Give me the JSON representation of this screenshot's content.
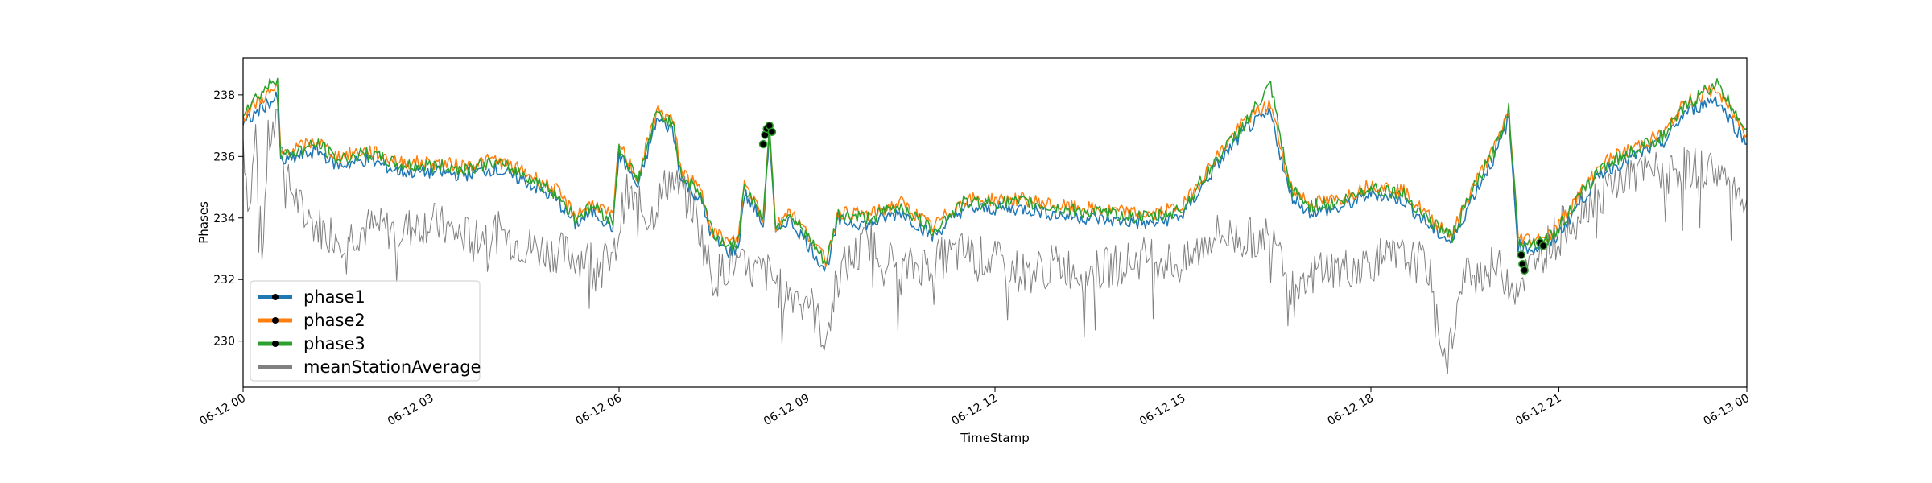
{
  "chart_data": {
    "type": "line",
    "title": "",
    "xlabel": "TimeStamp",
    "ylabel": "Phases",
    "xlim_hours": [
      0,
      24
    ],
    "ylim": [
      228.5,
      239.2
    ],
    "x_ticks": [
      {
        "h": 0,
        "label": "06-12 00"
      },
      {
        "h": 3,
        "label": "06-12 03"
      },
      {
        "h": 6,
        "label": "06-12 06"
      },
      {
        "h": 9,
        "label": "06-12 09"
      },
      {
        "h": 12,
        "label": "06-12 12"
      },
      {
        "h": 15,
        "label": "06-12 15"
      },
      {
        "h": 18,
        "label": "06-12 18"
      },
      {
        "h": 21,
        "label": "06-12 21"
      },
      {
        "h": 24,
        "label": "06-13 00"
      }
    ],
    "y_ticks": [
      {
        "v": 230,
        "label": "230"
      },
      {
        "v": 232,
        "label": "232"
      },
      {
        "v": 234,
        "label": "234"
      },
      {
        "v": 236,
        "label": "236"
      },
      {
        "v": 238,
        "label": "238"
      }
    ],
    "legend_position": "lower-left",
    "grid": false,
    "series": [
      {
        "name": "phase1",
        "color": "#1f77b4",
        "x": [
          0,
          0.3,
          0.55,
          0.6,
          1.2,
          1.5,
          2.0,
          2.5,
          3.0,
          3.5,
          4.0,
          4.5,
          5.0,
          5.3,
          5.6,
          5.9,
          6.0,
          6.3,
          6.6,
          6.85,
          7.0,
          7.3,
          7.5,
          7.75,
          7.9,
          8.0,
          8.2,
          8.3,
          8.4,
          8.5,
          8.7,
          9.0,
          9.3,
          9.5,
          10,
          10.5,
          11,
          11.5,
          12,
          12.5,
          13,
          13.5,
          14,
          14.5,
          15,
          15.5,
          16,
          16.4,
          16.7,
          17.0,
          17.5,
          18,
          18.5,
          19.0,
          19.3,
          19.6,
          20.0,
          20.2,
          20.35,
          20.6,
          20.9,
          21.3,
          21.7,
          22.2,
          22.7,
          23.0,
          23.5,
          24
        ],
        "y": [
          237.0,
          237.6,
          237.9,
          235.8,
          236.2,
          235.7,
          235.9,
          235.5,
          235.5,
          235.4,
          235.6,
          235.2,
          234.6,
          233.8,
          234.2,
          233.7,
          236.1,
          235.0,
          237.2,
          236.9,
          235.2,
          234.6,
          233.3,
          232.9,
          233.0,
          234.8,
          234.2,
          233.7,
          236.8,
          233.4,
          234.0,
          233.2,
          232.3,
          233.9,
          233.8,
          234.2,
          233.4,
          234.3,
          234.3,
          234.3,
          234.1,
          234.0,
          233.9,
          233.8,
          234.1,
          235.6,
          236.9,
          237.4,
          234.8,
          234.2,
          234.3,
          234.8,
          234.6,
          233.6,
          233.2,
          234.6,
          236.1,
          237.2,
          233.1,
          233.0,
          233.2,
          234.4,
          235.5,
          236.0,
          236.5,
          237.4,
          237.9,
          236.4
        ]
      },
      {
        "name": "phase2",
        "color": "#ff7f0e",
        "x": [
          0,
          0.3,
          0.55,
          0.6,
          1.2,
          1.5,
          2.0,
          2.5,
          3.0,
          3.5,
          4.0,
          4.5,
          5.0,
          5.3,
          5.6,
          5.9,
          6.0,
          6.3,
          6.6,
          6.85,
          7.0,
          7.3,
          7.5,
          7.75,
          7.9,
          8.0,
          8.2,
          8.3,
          8.4,
          8.5,
          8.7,
          9.0,
          9.3,
          9.5,
          10,
          10.5,
          11,
          11.5,
          12,
          12.5,
          13,
          13.5,
          14,
          14.5,
          15,
          15.5,
          16,
          16.4,
          16.7,
          17.0,
          17.5,
          18,
          18.5,
          19.0,
          19.3,
          19.6,
          20.0,
          20.2,
          20.35,
          20.6,
          20.9,
          21.3,
          21.7,
          22.2,
          22.7,
          23.0,
          23.5,
          24
        ],
        "y": [
          237.3,
          237.9,
          238.2,
          236.1,
          236.5,
          236.0,
          236.2,
          235.8,
          235.8,
          235.7,
          235.9,
          235.5,
          234.9,
          234.1,
          234.5,
          234.0,
          236.4,
          235.3,
          237.5,
          237.2,
          235.5,
          234.9,
          233.6,
          233.2,
          233.3,
          235.1,
          234.5,
          234.0,
          237.0,
          233.7,
          234.3,
          233.5,
          232.6,
          234.2,
          234.1,
          234.5,
          233.7,
          234.6,
          234.6,
          234.6,
          234.4,
          234.3,
          234.2,
          234.1,
          234.4,
          235.9,
          237.2,
          237.7,
          235.1,
          234.5,
          234.6,
          235.1,
          234.9,
          233.9,
          233.5,
          234.9,
          236.4,
          237.5,
          233.4,
          233.3,
          233.5,
          234.7,
          235.8,
          236.3,
          236.8,
          237.7,
          238.2,
          236.7
        ]
      },
      {
        "name": "phase3",
        "color": "#2ca02c",
        "x": [
          0,
          0.3,
          0.55,
          0.6,
          1.2,
          1.5,
          2.0,
          2.5,
          3.0,
          3.5,
          4.0,
          4.5,
          5.0,
          5.3,
          5.6,
          5.9,
          6.0,
          6.3,
          6.6,
          6.85,
          7.0,
          7.3,
          7.5,
          7.75,
          7.9,
          8.0,
          8.2,
          8.3,
          8.4,
          8.5,
          8.7,
          9.0,
          9.3,
          9.5,
          10,
          10.5,
          11,
          11.5,
          12,
          12.5,
          13,
          13.5,
          14,
          14.5,
          15,
          15.5,
          16,
          16.4,
          16.7,
          17.0,
          17.5,
          18,
          18.5,
          19.0,
          19.3,
          19.6,
          20.0,
          20.2,
          20.35,
          20.6,
          20.9,
          21.3,
          21.7,
          22.2,
          22.7,
          23.0,
          23.5,
          24
        ],
        "y": [
          237.5,
          238.1,
          238.6,
          236.0,
          236.4,
          235.9,
          236.1,
          235.7,
          235.7,
          235.6,
          235.8,
          235.4,
          234.8,
          234.0,
          234.4,
          233.9,
          236.3,
          235.2,
          237.4,
          237.1,
          235.4,
          234.8,
          233.5,
          233.1,
          233.2,
          235.0,
          234.4,
          233.9,
          237.1,
          233.6,
          234.2,
          233.4,
          232.5,
          234.1,
          234.0,
          234.4,
          233.6,
          234.5,
          234.5,
          234.5,
          234.3,
          234.2,
          234.1,
          234.0,
          234.3,
          235.8,
          237.1,
          238.3,
          235.0,
          234.4,
          234.5,
          235.0,
          234.8,
          233.8,
          233.4,
          234.8,
          236.3,
          237.6,
          233.3,
          233.2,
          233.4,
          234.6,
          235.7,
          236.2,
          236.7,
          237.6,
          238.4,
          236.9
        ]
      },
      {
        "name": "meanStationAverage",
        "color": "#808080",
        "x": [
          0,
          0.1,
          0.2,
          0.3,
          0.4,
          0.55,
          0.7,
          1.0,
          1.3,
          1.6,
          2.0,
          2.5,
          3.0,
          3.5,
          4.0,
          4.5,
          5.0,
          5.5,
          5.9,
          6.1,
          6.5,
          6.8,
          7.2,
          7.5,
          7.8,
          8.0,
          8.4,
          8.6,
          9.0,
          9.3,
          9.5,
          10,
          10.5,
          11,
          11.5,
          12,
          12.5,
          13,
          13.5,
          14,
          14.5,
          15,
          15.5,
          16,
          16.5,
          16.8,
          17.2,
          17.5,
          18,
          18.5,
          18.9,
          19.2,
          19.5,
          20,
          20.3,
          20.6,
          21,
          21.5,
          22,
          22.5,
          23,
          23.5,
          24
        ],
        "y": [
          236.6,
          234.2,
          236.8,
          232.7,
          236.5,
          237.0,
          235.2,
          234.0,
          233.6,
          233.4,
          233.7,
          233.6,
          233.9,
          233.4,
          233.6,
          233.1,
          232.9,
          232.7,
          232.5,
          234.8,
          234.0,
          235.3,
          234.3,
          232.0,
          232.6,
          232.3,
          232.2,
          231.6,
          231.5,
          230.0,
          232.2,
          233.3,
          232.3,
          232.6,
          232.9,
          232.6,
          232.2,
          232.5,
          232.2,
          232.5,
          232.8,
          232.4,
          233.5,
          233.3,
          233.6,
          231.2,
          232.5,
          232.3,
          232.6,
          232.7,
          232.5,
          229.3,
          232.1,
          232.4,
          231.8,
          232.5,
          233.6,
          234.6,
          235.3,
          235.5,
          235.6,
          235.6,
          234.6
        ]
      }
    ],
    "marker_points": [
      {
        "series": "phase3",
        "x": 8.3,
        "y": 236.4
      },
      {
        "series": "phase3",
        "x": 8.33,
        "y": 236.7
      },
      {
        "series": "phase3",
        "x": 8.36,
        "y": 236.9
      },
      {
        "series": "phase3",
        "x": 8.4,
        "y": 237.0
      },
      {
        "series": "phase3",
        "x": 8.44,
        "y": 236.8
      },
      {
        "series": "phase3",
        "x": 20.4,
        "y": 232.8
      },
      {
        "series": "phase3",
        "x": 20.42,
        "y": 232.5
      },
      {
        "series": "phase3",
        "x": 20.45,
        "y": 232.3
      },
      {
        "series": "phase3",
        "x": 20.7,
        "y": 233.2
      },
      {
        "series": "phase3",
        "x": 20.75,
        "y": 233.1
      }
    ]
  }
}
